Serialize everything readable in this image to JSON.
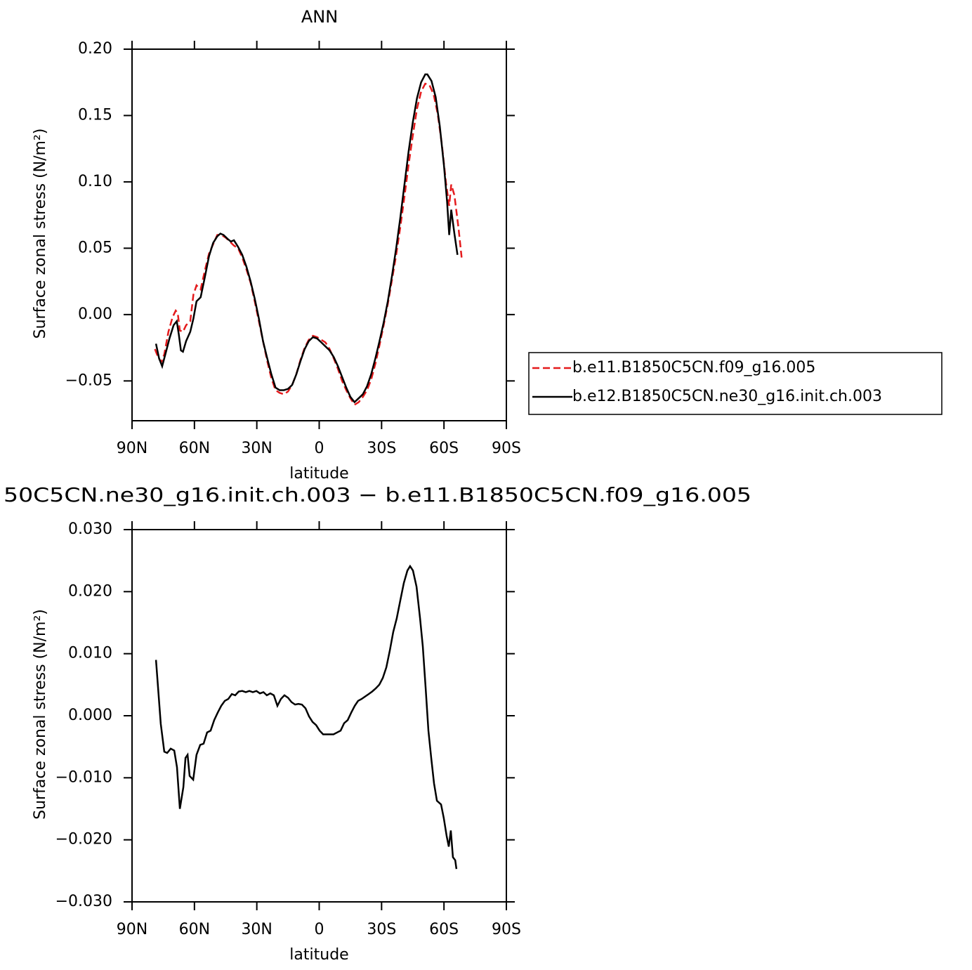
{
  "chart_data": [
    {
      "type": "line",
      "title": "ANN",
      "xlabel": "latitude",
      "ylabel": "Surface zonal stress (N/m²)",
      "xlim": [
        90,
        -90
      ],
      "ylim": [
        -0.08,
        0.2
      ],
      "xticks": [
        {
          "value": 90,
          "label": "90N"
        },
        {
          "value": 60,
          "label": "60N"
        },
        {
          "value": 30,
          "label": "30N"
        },
        0,
        {
          "value": -30,
          "label": "30S"
        },
        {
          "value": -60,
          "label": "60S"
        },
        {
          "value": -90,
          "label": "90S"
        }
      ],
      "yticks": [
        {
          "value": -0.05,
          "label": "−0.05"
        },
        {
          "value": 0,
          "label": "0.00"
        },
        {
          "value": 0.05,
          "label": "0.05"
        },
        {
          "value": 0.1,
          "label": "0.10"
        },
        {
          "value": 0.15,
          "label": "0.15"
        },
        {
          "value": 0.2,
          "label": "0.20"
        }
      ],
      "legend": "right",
      "series": [
        {
          "name": "b.e11.B1850C5CN.f09_g16.005",
          "color": "#e41a1c",
          "line_style": "dashed",
          "x": [
            79,
            77.5,
            76,
            74.5,
            72.5,
            70.5,
            69,
            68,
            67,
            65.5,
            64,
            62,
            60.5,
            59,
            57,
            55,
            53,
            51,
            49,
            47,
            45,
            43,
            41,
            39,
            37,
            35,
            33,
            31,
            29,
            27,
            25,
            23,
            21,
            19,
            17,
            15,
            13,
            11,
            9,
            7,
            5,
            3,
            1,
            -1,
            -3,
            -5,
            -7,
            -9,
            -11,
            -13,
            -15,
            -17,
            -19,
            -21,
            -23,
            -25,
            -27,
            -29,
            -31,
            -33,
            -35,
            -37,
            -39,
            -41,
            -43,
            -45,
            -47,
            -49,
            -51,
            -53,
            -55,
            -57,
            -59,
            -61,
            -62.5,
            -63.5,
            -65,
            -67,
            -68.5
          ],
          "values": [
            -0.026,
            -0.032,
            -0.036,
            -0.03,
            -0.013,
            -0.002,
            0.003,
            0.001,
            -0.012,
            -0.013,
            -0.008,
            -0.005,
            0.015,
            0.022,
            0.019,
            0.033,
            0.046,
            0.053,
            0.06,
            0.06,
            0.058,
            0.055,
            0.052,
            0.05,
            0.043,
            0.034,
            0.024,
            0.01,
            -0.005,
            -0.02,
            -0.035,
            -0.048,
            -0.057,
            -0.059,
            -0.06,
            -0.058,
            -0.053,
            -0.045,
            -0.034,
            -0.025,
            -0.019,
            -0.016,
            -0.017,
            -0.019,
            -0.021,
            -0.026,
            -0.033,
            -0.041,
            -0.05,
            -0.057,
            -0.063,
            -0.068,
            -0.066,
            -0.062,
            -0.057,
            -0.049,
            -0.037,
            -0.023,
            -0.008,
            0.008,
            0.026,
            0.045,
            0.066,
            0.089,
            0.113,
            0.135,
            0.155,
            0.168,
            0.174,
            0.173,
            0.166,
            0.151,
            0.128,
            0.099,
            0.082,
            0.098,
            0.09,
            0.065,
            0.043
          ]
        },
        {
          "name": "b.e12.B1850C5CN.ne30_g16.init.ch.003",
          "color": "#000000",
          "line_style": "solid",
          "x": [
            78.5,
            77,
            75.5,
            74,
            72,
            70,
            68.5,
            67.5,
            66.5,
            65.5,
            64,
            62,
            60.5,
            59,
            57,
            55,
            53,
            51,
            49,
            47.5,
            46,
            44,
            42.5,
            41,
            39,
            37,
            35,
            33,
            31,
            29,
            27,
            25,
            23,
            21,
            19,
            17,
            15,
            13,
            11,
            9,
            7,
            5,
            3,
            1,
            -1,
            -3,
            -5,
            -7,
            -9,
            -11,
            -13,
            -15,
            -17,
            -19,
            -21,
            -23,
            -25,
            -27,
            -29,
            -31,
            -33,
            -35,
            -37,
            -39,
            -41,
            -43,
            -45,
            -47,
            -49,
            -51,
            -52,
            -54,
            -56,
            -58,
            -60,
            -61.5,
            -62.5,
            -63.5,
            -65,
            -66.5
          ],
          "values": [
            -0.022,
            -0.033,
            -0.039,
            -0.03,
            -0.018,
            -0.008,
            -0.005,
            -0.015,
            -0.027,
            -0.028,
            -0.02,
            -0.013,
            -0.003,
            0.01,
            0.013,
            0.028,
            0.044,
            0.054,
            0.059,
            0.061,
            0.06,
            0.057,
            0.055,
            0.056,
            0.051,
            0.045,
            0.036,
            0.025,
            0.012,
            -0.003,
            -0.02,
            -0.033,
            -0.045,
            -0.055,
            -0.057,
            -0.057,
            -0.056,
            -0.053,
            -0.045,
            -0.035,
            -0.026,
            -0.02,
            -0.017,
            -0.018,
            -0.021,
            -0.024,
            -0.027,
            -0.032,
            -0.039,
            -0.047,
            -0.055,
            -0.062,
            -0.066,
            -0.063,
            -0.06,
            -0.054,
            -0.045,
            -0.033,
            -0.02,
            -0.006,
            0.01,
            0.029,
            0.05,
            0.073,
            0.098,
            0.123,
            0.145,
            0.163,
            0.175,
            0.181,
            0.181,
            0.176,
            0.164,
            0.142,
            0.112,
            0.085,
            0.06,
            0.079,
            0.061,
            0.045
          ]
        }
      ]
    },
    {
      "type": "line",
      "title": "50C5CN.ne30_g16.init.ch.003 − b.e11.B1850C5CN.f09_g16.005",
      "xlabel": "latitude",
      "ylabel": "Surface zonal stress (N/m²)",
      "xlim": [
        90,
        -90
      ],
      "ylim": [
        -0.03,
        0.03
      ],
      "xticks": [
        {
          "value": 90,
          "label": "90N"
        },
        {
          "value": 60,
          "label": "60N"
        },
        {
          "value": 30,
          "label": "30N"
        },
        0,
        {
          "value": -30,
          "label": "30S"
        },
        {
          "value": -60,
          "label": "60S"
        },
        {
          "value": -90,
          "label": "90S"
        }
      ],
      "yticks": [
        {
          "value": -0.03,
          "label": "−0.030"
        },
        {
          "value": -0.02,
          "label": "−0.020"
        },
        {
          "value": -0.01,
          "label": "−0.010"
        },
        {
          "value": 0,
          "label": "0.000"
        },
        {
          "value": 0.01,
          "label": "0.010"
        },
        {
          "value": 0.02,
          "label": "0.020"
        },
        {
          "value": 0.03,
          "label": "0.030"
        }
      ],
      "series": [
        {
          "color": "#000000",
          "line_style": "solid",
          "x": [
            78.5,
            76.2,
            74.5,
            73.1,
            71.4,
            69.7,
            68.4,
            67,
            65.3,
            64.3,
            63.3,
            62.3,
            60.6,
            59,
            57.2,
            55.6,
            53.9,
            52.2,
            50.5,
            48.8,
            47.1,
            45.4,
            43.7,
            42,
            40.4,
            38.7,
            37,
            35.3,
            33.6,
            31.9,
            30.2,
            28.5,
            26.8,
            25.2,
            23.5,
            21.8,
            20.1,
            18.4,
            16.7,
            15,
            13.3,
            11.6,
            10,
            8.3,
            6.6,
            4.9,
            3.2,
            1.5,
            -0.2,
            -1.9,
            -3.5,
            -5.2,
            -6.9,
            -8.6,
            -10.3,
            -12,
            -13.7,
            -15.4,
            -17.1,
            -18.7,
            -20.4,
            -22.1,
            -23.8,
            -25.5,
            -27.2,
            -28.9,
            -30.6,
            -32.3,
            -34,
            -35.6,
            -37.3,
            -39,
            -40.7,
            -42.4,
            -43.7,
            -45.1,
            -46.8,
            -48.5,
            -49.8,
            -51.2,
            -52.5,
            -53.9,
            -55.2,
            -56.6,
            -58.6,
            -59.9,
            -61.3,
            -62.3,
            -63.3,
            -64.3,
            -65.4,
            -66
          ],
          "values": [
            0.009,
            -0.0013,
            -0.0058,
            -0.006,
            -0.0053,
            -0.0056,
            -0.0083,
            -0.015,
            -0.0115,
            -0.0068,
            -0.0063,
            -0.0097,
            -0.0103,
            -0.0063,
            -0.0047,
            -0.0045,
            -0.0027,
            -0.0024,
            -0.0007,
            0.0005,
            0.0016,
            0.0024,
            0.0027,
            0.0035,
            0.0033,
            0.0039,
            0.004,
            0.0038,
            0.004,
            0.0038,
            0.004,
            0.0036,
            0.0038,
            0.0033,
            0.0036,
            0.0033,
            0.0016,
            0.0027,
            0.0033,
            0.0029,
            0.0022,
            0.0018,
            0.0019,
            0.0018,
            0.0012,
            -0.0001,
            -0.001,
            -0.0015,
            -0.0024,
            -0.003,
            -0.003,
            -0.003,
            -0.003,
            -0.0027,
            -0.0024,
            -0.0012,
            -0.0007,
            0.0005,
            0.0016,
            0.0024,
            0.0027,
            0.0031,
            0.0035,
            0.0039,
            0.0044,
            0.005,
            0.0061,
            0.0078,
            0.0106,
            0.0135,
            0.0157,
            0.0186,
            0.0214,
            0.0234,
            0.0241,
            0.0234,
            0.0208,
            0.0157,
            0.0112,
            0.0044,
            -0.0024,
            -0.0069,
            -0.0109,
            -0.0137,
            -0.0143,
            -0.0165,
            -0.0194,
            -0.0211,
            -0.0185,
            -0.0228,
            -0.0233,
            -0.0247
          ]
        }
      ]
    }
  ]
}
